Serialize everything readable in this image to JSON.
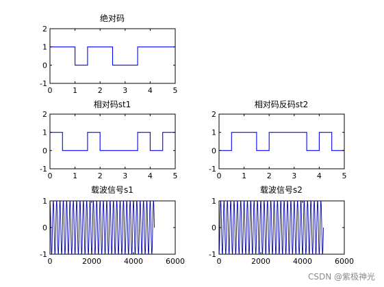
{
  "chart_data": [
    {
      "type": "line",
      "title": "绝对码",
      "x": [
        0,
        1,
        1,
        1.5,
        1.5,
        2.5,
        2.5,
        3.5,
        3.5,
        5
      ],
      "y": [
        1,
        1,
        0,
        0,
        1,
        1,
        0,
        0,
        1,
        1
      ],
      "xlim": [
        0,
        5
      ],
      "ylim": [
        -1,
        2
      ],
      "xticks": [
        0,
        1,
        2,
        3,
        4,
        5
      ],
      "yticks": [
        -1,
        0,
        1,
        2
      ],
      "line_color": "#0000ff"
    },
    {
      "type": "line",
      "title": "相对码st1",
      "x": [
        0,
        0.5,
        0.5,
        1.5,
        1.5,
        2,
        2,
        3.5,
        3.5,
        4,
        4,
        4.5,
        4.5,
        5
      ],
      "y": [
        1,
        1,
        0,
        0,
        1,
        1,
        0,
        0,
        1,
        1,
        0,
        0,
        1,
        1
      ],
      "xlim": [
        0,
        5
      ],
      "ylim": [
        -1,
        2
      ],
      "xticks": [
        0,
        1,
        2,
        3,
        4,
        5
      ],
      "yticks": [
        -1,
        0,
        1,
        2
      ],
      "line_color": "#0000ff"
    },
    {
      "type": "line",
      "title": "相对码反码st2",
      "x": [
        0,
        0.5,
        0.5,
        1.5,
        1.5,
        2,
        2,
        3.5,
        3.5,
        4,
        4,
        4.5,
        4.5,
        5
      ],
      "y": [
        0,
        0,
        1,
        1,
        0,
        0,
        1,
        1,
        0,
        0,
        1,
        1,
        0,
        0
      ],
      "xlim": [
        0,
        5
      ],
      "ylim": [
        -1,
        2
      ],
      "xticks": [
        0,
        1,
        2,
        3,
        4,
        5
      ],
      "yticks": [
        -1,
        0,
        1,
        2
      ],
      "line_color": "#0000ff"
    },
    {
      "type": "line",
      "title": "载波信号s1",
      "signal": "cos",
      "sample_count": 5000,
      "xlim": [
        0,
        6000
      ],
      "ylim": [
        -1,
        1
      ],
      "xticks": [
        0,
        2000,
        4000,
        6000
      ],
      "yticks": [
        -1,
        0,
        1
      ],
      "line_color": "#0000a0"
    },
    {
      "type": "line",
      "title": "载波信号s2",
      "signal": "-cos",
      "sample_count": 5000,
      "xlim": [
        0,
        6000
      ],
      "ylim": [
        -1,
        1
      ],
      "xticks": [
        0,
        2000,
        4000,
        6000
      ],
      "yticks": [
        -1,
        0,
        1
      ],
      "line_color": "#0000a0"
    }
  ],
  "watermark": "CSDN @紫极神光"
}
